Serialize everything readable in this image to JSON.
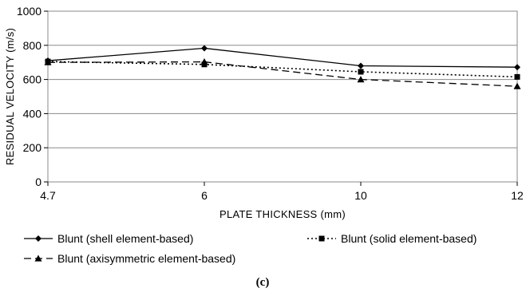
{
  "chart_data": {
    "type": "line",
    "title": "",
    "xlabel": "PLATE THICKNESS (mm)",
    "ylabel": "RESIDUAL VELOCITY  (m/s)",
    "categories": [
      "4.7",
      "6",
      "10",
      "12"
    ],
    "ylim": [
      0,
      1000
    ],
    "yticks": [
      "0",
      "200",
      "400",
      "600",
      "800",
      "1000"
    ],
    "grid": "horizontal",
    "legend_position": "bottom",
    "series": [
      {
        "name": "Blunt (shell element-based)",
        "values": [
          710,
          783,
          680,
          672
        ],
        "marker": "diamond",
        "line": "solid",
        "color": "#000000"
      },
      {
        "name": "Blunt (solid element-based)",
        "values": [
          705,
          688,
          645,
          615
        ],
        "marker": "square",
        "line": "dotted",
        "color": "#000000"
      },
      {
        "name": "Blunt (axisymmetric element-based)",
        "values": [
          700,
          703,
          600,
          560
        ],
        "marker": "triangle",
        "line": "dashed",
        "color": "#000000"
      }
    ]
  },
  "caption": "(c)"
}
